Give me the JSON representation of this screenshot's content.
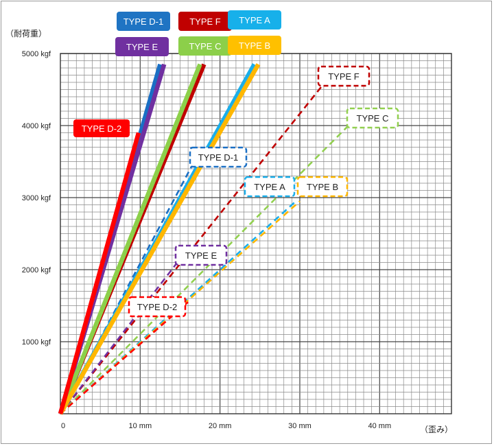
{
  "chart_data": {
    "type": "line",
    "ylabel": "（耐荷重）",
    "xlabel": "（歪み）",
    "xlim": [
      0,
      49
    ],
    "ylim": [
      0,
      5000
    ],
    "grid": true,
    "x_ticks": [
      {
        "value": 0,
        "label": "0"
      },
      {
        "value": 10,
        "label": "10 mm"
      },
      {
        "value": 20,
        "label": "20 mm"
      },
      {
        "value": 30,
        "label": "30 mm"
      },
      {
        "value": 40,
        "label": "40 mm"
      }
    ],
    "y_ticks": [
      {
        "value": 1000,
        "label": "1000 kgf"
      },
      {
        "value": 2000,
        "label": "2000 kgf"
      },
      {
        "value": 3000,
        "label": "3000 kgf"
      },
      {
        "value": 4000,
        "label": "4000 kgf"
      },
      {
        "value": 5000,
        "label": "5000 kgf"
      }
    ],
    "solid_series": [
      {
        "name": "TYPE D-1",
        "color": "#1a6fc4",
        "points": [
          [
            0,
            0
          ],
          [
            12.5,
            4850
          ]
        ]
      },
      {
        "name": "TYPE F",
        "color": "#c00000",
        "points": [
          [
            0,
            0
          ],
          [
            18.0,
            4850
          ]
        ]
      },
      {
        "name": "TYPE A",
        "color": "#1aaeea",
        "points": [
          [
            0,
            0
          ],
          [
            24.3,
            4850
          ]
        ]
      },
      {
        "name": "TYPE E",
        "color": "#7030a0",
        "points": [
          [
            0,
            0
          ],
          [
            13.0,
            4850
          ]
        ]
      },
      {
        "name": "TYPE C",
        "color": "#8cd04a",
        "points": [
          [
            0,
            0
          ],
          [
            17.5,
            4850
          ]
        ]
      },
      {
        "name": "TYPE B",
        "color": "#ffb700",
        "points": [
          [
            0,
            0
          ],
          [
            24.8,
            4850
          ]
        ]
      },
      {
        "name": "TYPE D-2",
        "color": "#ff0000",
        "points": [
          [
            0,
            0
          ],
          [
            9.8,
            3900
          ]
        ]
      }
    ],
    "dashed_series": [
      {
        "name": "TYPE F",
        "color": "#c00000",
        "points": [
          [
            0,
            0
          ],
          [
            33.5,
            4650
          ]
        ]
      },
      {
        "name": "TYPE C",
        "color": "#92d050",
        "points": [
          [
            0,
            0
          ],
          [
            37.0,
            4100
          ]
        ]
      },
      {
        "name": "TYPE D-1",
        "color": "#1a6fc4",
        "points": [
          [
            0,
            0
          ],
          [
            17.0,
            3550
          ]
        ]
      },
      {
        "name": "TYPE A",
        "color": "#1aaeea",
        "points": [
          [
            0,
            0
          ],
          [
            29.5,
            2950
          ]
        ]
      },
      {
        "name": "TYPE B",
        "color": "#ffb700",
        "points": [
          [
            0,
            0
          ],
          [
            30.0,
            2950
          ]
        ]
      },
      {
        "name": "TYPE E",
        "color": "#7030a0",
        "points": [
          [
            0,
            0
          ],
          [
            15.0,
            2150
          ]
        ]
      },
      {
        "name": "TYPE D-2",
        "color": "#ff0000",
        "points": [
          [
            0,
            0
          ],
          [
            16.0,
            1550
          ]
        ]
      }
    ],
    "legend": [
      {
        "label": "TYPE D-1",
        "color": "#1f74c3"
      },
      {
        "label": "TYPE F",
        "color": "#c00000"
      },
      {
        "label": "TYPE A",
        "color": "#17b0ea"
      },
      {
        "label": "TYPE E",
        "color": "#7030a0"
      },
      {
        "label": "TYPE C",
        "color": "#8ccf4a"
      },
      {
        "label": "TYPE B",
        "color": "#ffc000"
      }
    ],
    "solid_annotations": [
      {
        "label": "TYPE D-2",
        "color": "#ff0000"
      }
    ],
    "dashed_annotations": [
      {
        "label": "TYPE F",
        "color": "#c00000"
      },
      {
        "label": "TYPE C",
        "color": "#92d050"
      },
      {
        "label": "TYPE D-1",
        "color": "#1a6fc4"
      },
      {
        "label": "TYPE A",
        "color": "#1aaeea"
      },
      {
        "label": "TYPE B",
        "color": "#ffb700"
      },
      {
        "label": "TYPE E",
        "color": "#7030a0"
      },
      {
        "label": "TYPE D-2",
        "color": "#ff0000"
      }
    ]
  }
}
